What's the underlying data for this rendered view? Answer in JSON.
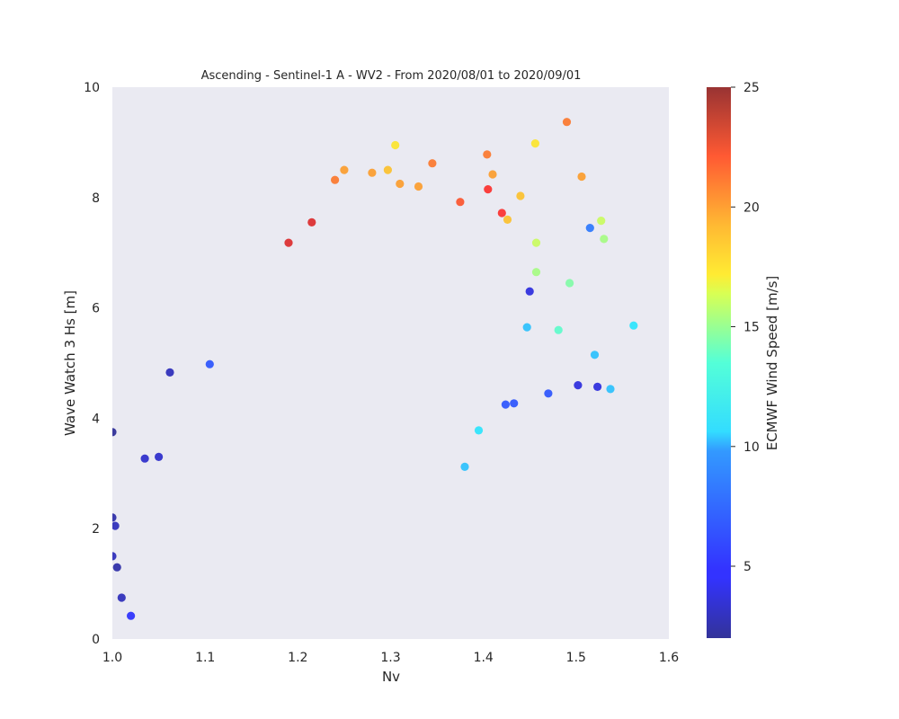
{
  "chart_data": {
    "type": "scatter",
    "title": "Ascending - Sentinel-1 A - WV2 - From 2020/08/01 to 2020/09/01",
    "xlabel": "Nv",
    "ylabel": "Wave Watch 3 Hs [m]",
    "xlim": [
      1.0,
      1.6
    ],
    "ylim": [
      0,
      10
    ],
    "x_ticks": [
      1.0,
      1.1,
      1.2,
      1.3,
      1.4,
      1.5,
      1.6
    ],
    "x_tick_labels": [
      "1.0",
      "1.1",
      "1.2",
      "1.3",
      "1.4",
      "1.5",
      "1.6"
    ],
    "y_ticks": [
      0,
      2,
      4,
      6,
      8,
      10
    ],
    "y_tick_labels": [
      "0",
      "2",
      "4",
      "6",
      "8",
      "10"
    ],
    "grid": false,
    "background_color": "#eaeaf2",
    "colormap": "jet",
    "colorbar": {
      "label": "ECMWF Wind Speed [m/s]",
      "vmin": 2,
      "vmax": 25,
      "ticks": [
        5,
        10,
        15,
        20,
        25
      ],
      "tick_labels": [
        "5",
        "10",
        "15",
        "20",
        "25"
      ]
    },
    "series": [
      {
        "points": [
          [
            1.0,
            3.75,
            2
          ],
          [
            1.0,
            2.2,
            2.5
          ],
          [
            1.003,
            2.05,
            3
          ],
          [
            1.0,
            1.5,
            3
          ],
          [
            1.005,
            1.3,
            2.5
          ],
          [
            1.01,
            0.75,
            3
          ],
          [
            1.02,
            0.42,
            5
          ],
          [
            1.062,
            4.83,
            3
          ],
          [
            1.035,
            3.27,
            3.5
          ],
          [
            1.05,
            3.3,
            3.5
          ],
          [
            1.105,
            4.98,
            6
          ],
          [
            1.49,
            9.37,
            20
          ],
          [
            1.456,
            8.98,
            17
          ],
          [
            1.404,
            8.78,
            20
          ],
          [
            1.305,
            8.95,
            17
          ],
          [
            1.345,
            8.62,
            20
          ],
          [
            1.25,
            8.5,
            19
          ],
          [
            1.28,
            8.45,
            19
          ],
          [
            1.297,
            8.5,
            18
          ],
          [
            1.506,
            8.38,
            19
          ],
          [
            1.405,
            8.15,
            22
          ],
          [
            1.42,
            7.72,
            22
          ],
          [
            1.375,
            7.92,
            21
          ],
          [
            1.215,
            7.55,
            23
          ],
          [
            1.19,
            7.18,
            23
          ],
          [
            1.515,
            7.45,
            7
          ],
          [
            1.527,
            7.58,
            15
          ],
          [
            1.53,
            7.25,
            14
          ],
          [
            1.562,
            5.68,
            10
          ],
          [
            1.52,
            5.15,
            9
          ],
          [
            1.537,
            4.53,
            9
          ],
          [
            1.523,
            4.57,
            4
          ],
          [
            1.502,
            4.6,
            4
          ],
          [
            1.47,
            4.45,
            6
          ],
          [
            1.481,
            5.6,
            12
          ],
          [
            1.493,
            6.45,
            13
          ],
          [
            1.457,
            6.65,
            14
          ],
          [
            1.457,
            7.18,
            15
          ],
          [
            1.44,
            8.03,
            18
          ],
          [
            1.426,
            7.6,
            18
          ],
          [
            1.424,
            4.25,
            6
          ],
          [
            1.433,
            4.27,
            6
          ],
          [
            1.38,
            3.12,
            9
          ],
          [
            1.395,
            3.78,
            10
          ],
          [
            1.45,
            6.3,
            4
          ],
          [
            1.447,
            5.65,
            9
          ],
          [
            1.41,
            8.42,
            19
          ],
          [
            1.33,
            8.2,
            19
          ],
          [
            1.31,
            8.25,
            19
          ],
          [
            1.24,
            8.32,
            20
          ]
        ]
      }
    ]
  }
}
